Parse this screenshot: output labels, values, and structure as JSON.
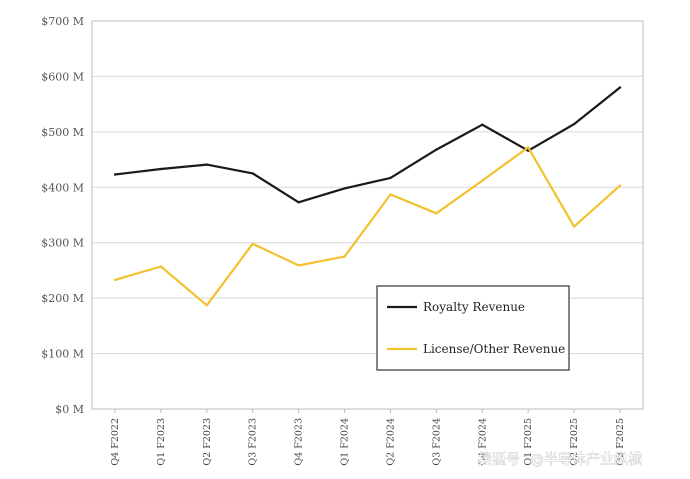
{
  "chart_data": {
    "type": "line",
    "title": "",
    "xlabel": "",
    "ylabel": "",
    "categories": [
      "Q4 F2022",
      "Q1 F2023",
      "Q2 F2023",
      "Q3 F2023",
      "Q4 F2023",
      "Q1 F2024",
      "Q2 F2024",
      "Q3 F2024",
      "Q4 F2024",
      "Q1 F2025",
      "Q2 F2025",
      "Q3 F2025"
    ],
    "series": [
      {
        "name": "Royalty Revenue",
        "color": "#1a1a1a",
        "values": [
          423,
          433,
          441,
          425,
          373,
          398,
          417,
          468,
          513,
          466,
          514,
          580
        ]
      },
      {
        "name": "License/Other Revenue",
        "color": "#f2c12e",
        "values": [
          233,
          257,
          187,
          298,
          259,
          275,
          387,
          353,
          412,
          472,
          329,
          403
        ]
      }
    ],
    "ylim": [
      0,
      700
    ],
    "yticks": [
      0,
      100,
      200,
      300,
      400,
      500,
      600,
      700
    ],
    "ytick_labels": [
      "$0 M",
      "$100 M",
      "$200 M",
      "$300 M",
      "$400 M",
      "$500 M",
      "$600 M",
      "$700 M"
    ],
    "grid": true,
    "legend_position": "center-right"
  },
  "watermark": {
    "text": "@半导体产业纵横",
    "prefix": "搜狐号"
  }
}
